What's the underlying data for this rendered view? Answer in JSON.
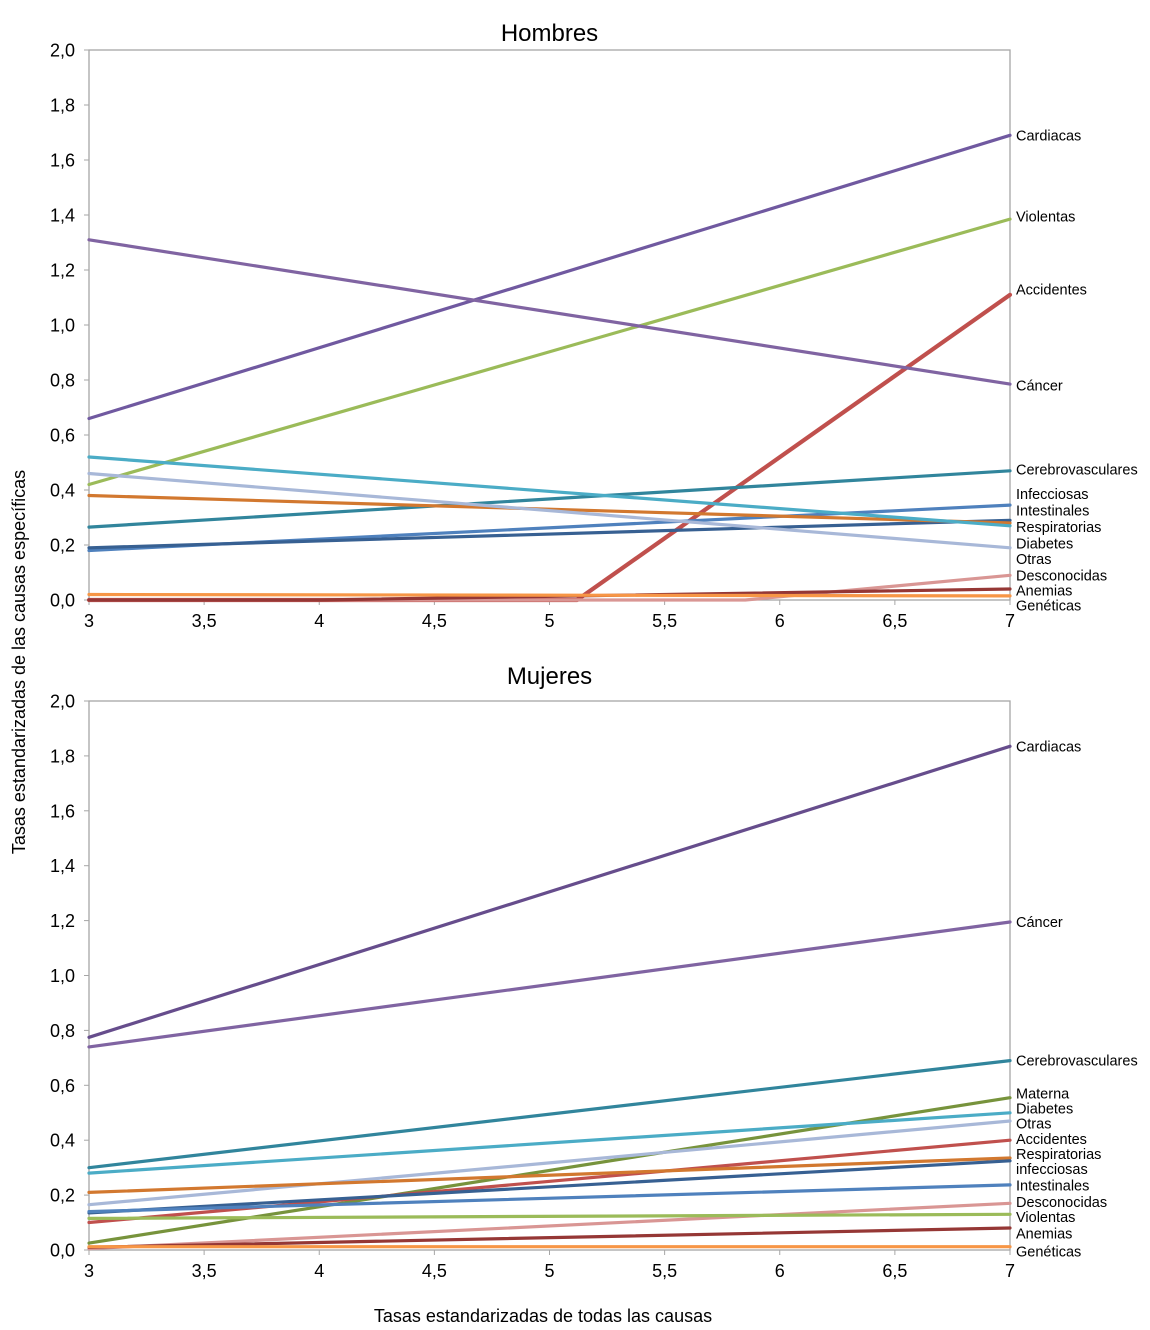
{
  "chart_data": {
    "type": "line",
    "xlabel": "Tasas estandarizadas de todas las causas",
    "ylabel": "Tasas estandarizadas de las causas específicas",
    "panels": [
      {
        "title": "Hombres",
        "xlim": [
          3,
          7
        ],
        "ylim": [
          0,
          2.0
        ],
        "x_ticks": [
          "3",
          "3,5",
          "4",
          "4,5",
          "5",
          "5,5",
          "6",
          "6,5",
          "7"
        ],
        "x_tick_values": [
          3,
          3.5,
          4,
          4.5,
          5,
          5.5,
          6,
          6.5,
          7
        ],
        "y_ticks": [
          "0,0",
          "0,2",
          "0,4",
          "0,6",
          "0,8",
          "1,0",
          "1,2",
          "1,4",
          "1,6",
          "1,8",
          "2,0"
        ],
        "y_tick_values": [
          0,
          0.2,
          0.4,
          0.6,
          0.8,
          1.0,
          1.2,
          1.4,
          1.6,
          1.8,
          2.0
        ],
        "grid": false,
        "legend": "right-end-labels",
        "series": [
          {
            "name": "Cardiacas",
            "color": "#7059a0",
            "points": [
              [
                3,
                0.66
              ],
              [
                7,
                1.69
              ]
            ]
          },
          {
            "name": "Violentas",
            "color": "#9bbb59",
            "points": [
              [
                3,
                0.42
              ],
              [
                7,
                1.385
              ]
            ]
          },
          {
            "name": "Accidentes",
            "color": "#c0504d",
            "points": [
              [
                3,
                0.0
              ],
              [
                5.12,
                0.0
              ],
              [
                7,
                1.11
              ]
            ]
          },
          {
            "name": "Cáncer",
            "color": "#8064a2",
            "points": [
              [
                3,
                1.31
              ],
              [
                7,
                0.785
              ]
            ]
          },
          {
            "name": "Cerebrovasculares",
            "color": "#31859c",
            "points": [
              [
                3,
                0.265
              ],
              [
                7,
                0.47
              ]
            ]
          },
          {
            "name": "Infecciosas",
            "color": "#4f81bd",
            "points": [
              [
                3,
                0.18
              ],
              [
                7,
                0.345
              ]
            ]
          },
          {
            "name": "Intestinales",
            "color": "#376092",
            "points": [
              [
                3,
                0.19
              ],
              [
                7,
                0.29
              ]
            ]
          },
          {
            "name": "Respiratorias",
            "color": "#d2782f",
            "points": [
              [
                3,
                0.38
              ],
              [
                7,
                0.28
              ]
            ]
          },
          {
            "name": "Diabetes",
            "color": "#4bacc6",
            "points": [
              [
                3,
                0.52
              ],
              [
                7,
                0.27
              ]
            ]
          },
          {
            "name": "Otras",
            "color": "#a8b8d8",
            "points": [
              [
                3,
                0.46
              ],
              [
                7,
                0.19
              ]
            ]
          },
          {
            "name": "Desconocidas",
            "color": "#d99694",
            "points": [
              [
                3,
                0.0
              ],
              [
                5.85,
                0.0
              ],
              [
                7,
                0.09
              ]
            ]
          },
          {
            "name": "Anemias",
            "color": "#953735",
            "points": [
              [
                3,
                0.0
              ],
              [
                4.0,
                0.0
              ],
              [
                7,
                0.04
              ]
            ]
          },
          {
            "name": "Genéticas",
            "color": "#f79646",
            "points": [
              [
                3,
                0.02
              ],
              [
                7,
                0.015
              ]
            ]
          }
        ],
        "end_labels": [
          "Cardiacas",
          "Violentas",
          "Accidentes",
          "Cáncer",
          "Cerebrovasculares",
          "Infecciosas",
          "Intestinales",
          "Respiratorias",
          "Diabetes",
          "Otras",
          "Desconocidas",
          "Anemias",
          "Genéticas"
        ],
        "end_label_values": [
          1.69,
          1.395,
          1.13,
          0.78,
          0.475,
          0.385,
          0.325,
          0.265,
          0.205,
          0.15,
          0.09,
          0.035,
          -0.02
        ]
      },
      {
        "title": "Mujeres",
        "xlim": [
          3,
          7
        ],
        "ylim": [
          0,
          2.0
        ],
        "x_ticks": [
          "3",
          "3,5",
          "4",
          "4,5",
          "5",
          "5,5",
          "6",
          "6,5",
          "7"
        ],
        "x_tick_values": [
          3,
          3.5,
          4,
          4.5,
          5,
          5.5,
          6,
          6.5,
          7
        ],
        "y_ticks": [
          "0,0",
          "0,2",
          "0,4",
          "0,6",
          "0,8",
          "1,0",
          "1,2",
          "1,4",
          "1,6",
          "1,8",
          "2,0"
        ],
        "y_tick_values": [
          0,
          0.2,
          0.4,
          0.6,
          0.8,
          1.0,
          1.2,
          1.4,
          1.6,
          1.8,
          2.0
        ],
        "grid": false,
        "legend": "right-end-labels",
        "series": [
          {
            "name": "Cardiacas",
            "color": "#664d8c",
            "points": [
              [
                3,
                0.775
              ],
              [
                7,
                1.835
              ]
            ]
          },
          {
            "name": "Cáncer",
            "color": "#8064a2",
            "points": [
              [
                3,
                0.74
              ],
              [
                7,
                1.195
              ]
            ]
          },
          {
            "name": "Cerebrovasculares",
            "color": "#31859c",
            "points": [
              [
                3,
                0.3
              ],
              [
                7,
                0.69
              ]
            ]
          },
          {
            "name": "Materna",
            "color": "#77933c",
            "points": [
              [
                3,
                0.025
              ],
              [
                7,
                0.555
              ]
            ]
          },
          {
            "name": "Diabetes",
            "color": "#4bacc6",
            "points": [
              [
                3,
                0.28
              ],
              [
                7,
                0.5
              ]
            ]
          },
          {
            "name": "Otras",
            "color": "#a8b8d8",
            "points": [
              [
                3,
                0.165
              ],
              [
                7,
                0.47
              ]
            ]
          },
          {
            "name": "Accidentes",
            "color": "#c0504d",
            "points": [
              [
                3,
                0.1
              ],
              [
                7,
                0.4
              ]
            ]
          },
          {
            "name": "Respiratorias",
            "color": "#d2782f",
            "points": [
              [
                3,
                0.21
              ],
              [
                7,
                0.335
              ]
            ]
          },
          {
            "name": "infecciosas",
            "color": "#376092",
            "points": [
              [
                3,
                0.135
              ],
              [
                7,
                0.325
              ]
            ]
          },
          {
            "name": "Intestinales",
            "color": "#4f81bd",
            "points": [
              [
                3,
                0.14
              ],
              [
                7,
                0.237
              ]
            ]
          },
          {
            "name": "Desconocidas",
            "color": "#d99694",
            "points": [
              [
                3,
                0.005
              ],
              [
                7,
                0.17
              ]
            ]
          },
          {
            "name": "Violentas",
            "color": "#9bbb59",
            "points": [
              [
                3,
                0.115
              ],
              [
                7,
                0.13
              ]
            ]
          },
          {
            "name": "Anemias",
            "color": "#953735",
            "points": [
              [
                3,
                0.01
              ],
              [
                7,
                0.08
              ]
            ]
          },
          {
            "name": "Genéticas",
            "color": "#f79646",
            "points": [
              [
                3,
                0.012
              ],
              [
                7,
                0.012
              ]
            ]
          }
        ],
        "end_labels": [
          "Cardiacas",
          "Cáncer",
          "Cerebrovasculares",
          "Materna",
          "Diabetes",
          "Otras",
          "Accidentes",
          "Respiratorias",
          "infecciosas",
          "Intestinales",
          "Desconocidas",
          "Violentas",
          "Anemias",
          "Genéticas"
        ],
        "end_label_values": [
          1.835,
          1.195,
          0.69,
          0.57,
          0.515,
          0.46,
          0.405,
          0.35,
          0.295,
          0.235,
          0.175,
          0.12,
          0.06,
          -0.005
        ]
      }
    ]
  }
}
